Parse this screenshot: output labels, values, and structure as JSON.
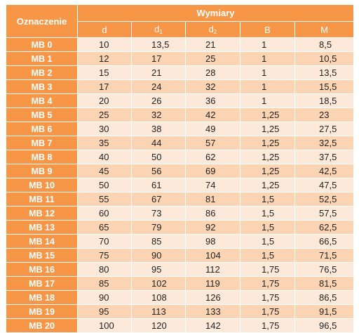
{
  "table": {
    "row_header_title": "Oznaczenie",
    "group_title": "Wymiary",
    "columns": [
      {
        "base": "d",
        "sub": ""
      },
      {
        "base": "d",
        "sub": "1"
      },
      {
        "base": "d",
        "sub": "2"
      },
      {
        "base": "B",
        "sub": ""
      },
      {
        "base": "M",
        "sub": ""
      }
    ],
    "rows": [
      {
        "label": "MB 0",
        "values": [
          "10",
          "13,5",
          "21",
          "1",
          "8,5"
        ]
      },
      {
        "label": "MB 1",
        "values": [
          "12",
          "17",
          "25",
          "1",
          "10,5"
        ]
      },
      {
        "label": "MB 2",
        "values": [
          "15",
          "21",
          "28",
          "1",
          "13,5"
        ]
      },
      {
        "label": "MB 3",
        "values": [
          "17",
          "24",
          "32",
          "1",
          "15,5"
        ]
      },
      {
        "label": "MB 4",
        "values": [
          "20",
          "26",
          "36",
          "1",
          "18,5"
        ]
      },
      {
        "label": "MB 5",
        "values": [
          "25",
          "32",
          "42",
          "1,25",
          "23"
        ]
      },
      {
        "label": "MB 6",
        "values": [
          "30",
          "38",
          "49",
          "1,25",
          "27,5"
        ]
      },
      {
        "label": "MB 7",
        "values": [
          "35",
          "44",
          "57",
          "1,25",
          "32,5"
        ]
      },
      {
        "label": "MB 8",
        "values": [
          "40",
          "50",
          "62",
          "1,25",
          "37,5"
        ]
      },
      {
        "label": "MB 9",
        "values": [
          "45",
          "56",
          "69",
          "1,25",
          "42,5"
        ]
      },
      {
        "label": "MB 10",
        "values": [
          "50",
          "61",
          "74",
          "1,25",
          "47,5"
        ]
      },
      {
        "label": "MB 11",
        "values": [
          "55",
          "67",
          "81",
          "1,5",
          "52,5"
        ]
      },
      {
        "label": "MB 12",
        "values": [
          "60",
          "73",
          "86",
          "1,5",
          "57,5"
        ]
      },
      {
        "label": "MB 13",
        "values": [
          "65",
          "79",
          "92",
          "1,5",
          "62,5"
        ]
      },
      {
        "label": "MB 14",
        "values": [
          "70",
          "85",
          "98",
          "1,5",
          "66,5"
        ]
      },
      {
        "label": "MB 15",
        "values": [
          "75",
          "90",
          "104",
          "1,5",
          "71,5"
        ]
      },
      {
        "label": "MB 16",
        "values": [
          "80",
          "95",
          "112",
          "1,75",
          "76,5"
        ]
      },
      {
        "label": "MB 17",
        "values": [
          "85",
          "102",
          "119",
          "1,75",
          "81,5"
        ]
      },
      {
        "label": "MB 18",
        "values": [
          "90",
          "108",
          "126",
          "1,75",
          "86,5"
        ]
      },
      {
        "label": "MB 19",
        "values": [
          "95",
          "113",
          "133",
          "1,75",
          "91,5"
        ]
      },
      {
        "label": "MB 20",
        "values": [
          "100",
          "120",
          "142",
          "1,75",
          "96,5"
        ]
      }
    ]
  },
  "colors": {
    "header_orange": "#f79646",
    "row_light": "#fde9d9",
    "row_dark": "#fbd4b4"
  }
}
